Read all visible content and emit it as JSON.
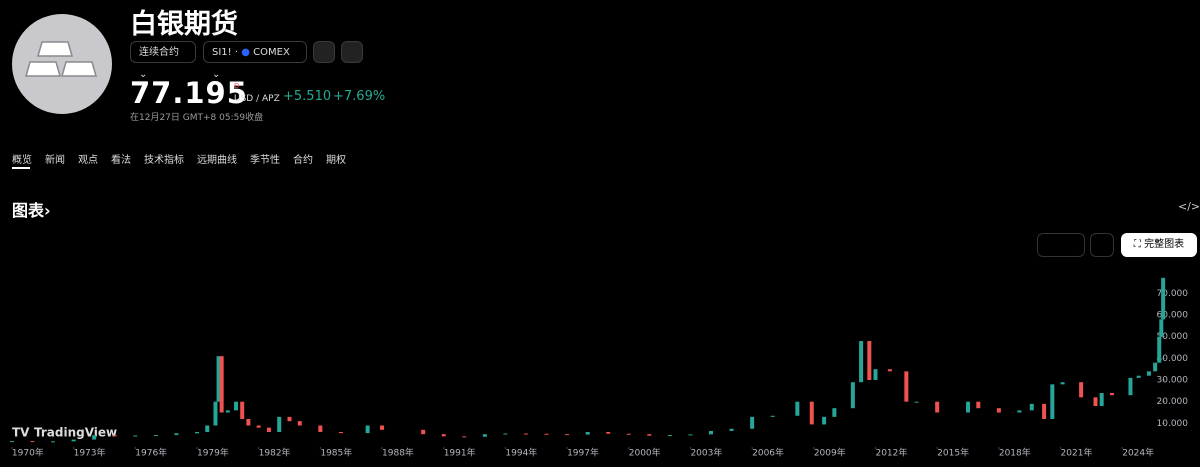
{
  "header": {
    "title": "白银期货",
    "contract_button": "连续合约",
    "symbol": "SI1!",
    "exchange": "COMEX",
    "price": "77.195",
    "price_flag": "D",
    "unit": "USD / APZ",
    "change": "+5.510",
    "change_percent": "+7.69%",
    "timestamp": "在12月27日 GMT+8 05:59收盘"
  },
  "tabs": [
    "概览",
    "新闻",
    "观点",
    "看法",
    "技术指标",
    "远期曲线",
    "季节性",
    "合约",
    "期权"
  ],
  "section_title": "图表",
  "full_chart_button": "完整图表",
  "watermark": "TradingView",
  "chart_data": {
    "type": "candlestick",
    "up_color": "#26a69a",
    "down_color": "#ef5350",
    "x": [
      1970,
      1971,
      1972,
      1973,
      1974,
      1975,
      1976,
      1977,
      1978,
      1979,
      1979.5,
      1979.9,
      1980.05,
      1980.2,
      1980.5,
      1980.9,
      1981.2,
      1981.5,
      1982,
      1982.5,
      1983,
      1983.5,
      1984,
      1985,
      1986,
      1987.3,
      1988,
      1990,
      1991,
      1992,
      1993,
      1994,
      1995,
      1996,
      1997,
      1998,
      1999,
      2000,
      2001,
      2002,
      2003,
      2004,
      2005,
      2006,
      2007,
      2008.2,
      2008.9,
      2009.5,
      2010,
      2010.9,
      2011.3,
      2011.7,
      2012,
      2012.7,
      2013.5,
      2014,
      2015,
      2016.5,
      2017,
      2018,
      2019,
      2019.6,
      2020.2,
      2020.6,
      2021.1,
      2022,
      2022.7,
      2023,
      2023.5,
      2024.4,
      2024.8,
      2025.3,
      2025.6,
      2025.8,
      2025.9,
      2025.99
    ],
    "close": [
      1.8,
      1.5,
      1.7,
      2.5,
      4.5,
      4.2,
      4.4,
      4.6,
      5.4,
      6,
      9,
      20,
      41,
      15,
      16,
      20,
      12,
      9,
      8,
      6,
      13,
      11,
      9,
      6,
      5.5,
      9,
      7,
      5,
      4,
      3.8,
      5,
      5.3,
      5.2,
      5,
      4.8,
      6,
      5.2,
      5,
      4.3,
      4.6,
      4.9,
      6.5,
      7.5,
      13,
      13.5,
      20,
      9.5,
      13,
      17,
      29,
      48,
      30,
      35,
      34,
      20,
      20,
      15,
      20,
      17,
      15,
      16,
      19,
      12,
      28,
      29,
      22,
      18,
      24,
      23,
      31,
      32,
      34,
      38,
      50,
      58,
      77.195
    ],
    "xlim": [
      1969.42,
      2026.08
    ],
    "ylim": [
      0,
      80.8
    ],
    "xticks": [
      {
        "value": 1970,
        "label": "1970年"
      },
      {
        "value": 1973,
        "label": "1973年"
      },
      {
        "value": 1976,
        "label": "1976年"
      },
      {
        "value": 1979,
        "label": "1979年"
      },
      {
        "value": 1982,
        "label": "1982年"
      },
      {
        "value": 1985,
        "label": "1985年"
      },
      {
        "value": 1988,
        "label": "1988年"
      },
      {
        "value": 1991,
        "label": "1991年"
      },
      {
        "value": 1994,
        "label": "1994年"
      },
      {
        "value": 1997,
        "label": "1997年"
      },
      {
        "value": 2000,
        "label": "2000年"
      },
      {
        "value": 2003,
        "label": "2003年"
      },
      {
        "value": 2006,
        "label": "2006年"
      },
      {
        "value": 2009,
        "label": "2009年"
      },
      {
        "value": 2012,
        "label": "2012年"
      },
      {
        "value": 2015,
        "label": "2015年"
      },
      {
        "value": 2018,
        "label": "2018年"
      },
      {
        "value": 2021,
        "label": "2021年"
      },
      {
        "value": 2024,
        "label": "2024年"
      }
    ],
    "yticks": [
      {
        "value": 10,
        "label": "10.000"
      },
      {
        "value": 20,
        "label": "20.000"
      },
      {
        "value": 30,
        "label": "30.000"
      },
      {
        "value": 40,
        "label": "40.000"
      },
      {
        "value": 50,
        "label": "50.000"
      },
      {
        "value": 60,
        "label": "60.000"
      },
      {
        "value": 70,
        "label": "70.000"
      }
    ]
  }
}
